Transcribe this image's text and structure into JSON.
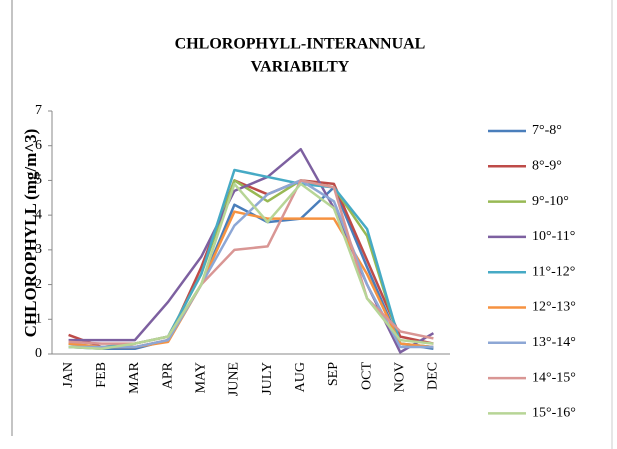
{
  "chart_data": {
    "type": "line",
    "title": [
      "CHLOROPHYLL-INTERANNUAL",
      "VARIABILTY"
    ],
    "y_label": "CHLOROPHYLL (mg/m^3)",
    "categories": [
      "JAN",
      "FEB",
      "MAR",
      "APR",
      "MAY",
      "JUNE",
      "JULY",
      "AUG",
      "SEP",
      "OCT",
      "NOV",
      "DEC"
    ],
    "ylim": [
      0,
      7
    ],
    "yticks": [
      0,
      1,
      2,
      3,
      4,
      5,
      6,
      7
    ],
    "grid": false,
    "legend": "right",
    "series": [
      {
        "name": "7°-8°",
        "color": "#4a7ebb",
        "values": [
          0.2,
          0.15,
          0.15,
          0.4,
          2.0,
          4.3,
          3.8,
          3.9,
          4.8,
          2.5,
          0.3,
          0.15
        ]
      },
      {
        "name": "8°-9°",
        "color": "#be4b48",
        "values": [
          0.55,
          0.2,
          0.2,
          0.4,
          2.5,
          5.0,
          4.6,
          5.0,
          4.9,
          2.7,
          0.5,
          0.3
        ]
      },
      {
        "name": "9°-10°",
        "color": "#98b954",
        "values": [
          0.3,
          0.2,
          0.3,
          0.5,
          2.3,
          5.0,
          4.4,
          5.0,
          4.8,
          3.4,
          0.3,
          0.2
        ]
      },
      {
        "name": "10°-11°",
        "color": "#7d60a0",
        "values": [
          0.4,
          0.4,
          0.4,
          1.5,
          2.8,
          4.7,
          5.1,
          5.9,
          4.2,
          2.0,
          0.05,
          0.6
        ]
      },
      {
        "name": "11°-12°",
        "color": "#46aac5",
        "values": [
          0.2,
          0.2,
          0.3,
          0.5,
          2.3,
          5.3,
          5.1,
          4.9,
          4.8,
          3.6,
          0.3,
          0.2
        ]
      },
      {
        "name": "12°-13°",
        "color": "#f69240",
        "values": [
          0.3,
          0.2,
          0.2,
          0.35,
          2.0,
          4.1,
          3.9,
          3.9,
          3.9,
          2.3,
          0.3,
          0.2
        ]
      },
      {
        "name": "13°-14°",
        "color": "#8da7d5",
        "values": [
          0.2,
          0.2,
          0.2,
          0.4,
          2.0,
          3.7,
          4.6,
          5.0,
          4.4,
          2.0,
          0.2,
          0.2
        ]
      },
      {
        "name": "14°-15°",
        "color": "#d99694",
        "values": [
          0.35,
          0.3,
          0.3,
          0.5,
          2.0,
          3.0,
          3.1,
          5.0,
          4.8,
          1.6,
          0.65,
          0.45
        ]
      },
      {
        "name": "15°-16°",
        "color": "#b7d596",
        "values": [
          0.2,
          0.15,
          0.3,
          0.5,
          2.0,
          4.9,
          3.8,
          4.9,
          4.2,
          1.6,
          0.4,
          0.3
        ]
      }
    ]
  }
}
